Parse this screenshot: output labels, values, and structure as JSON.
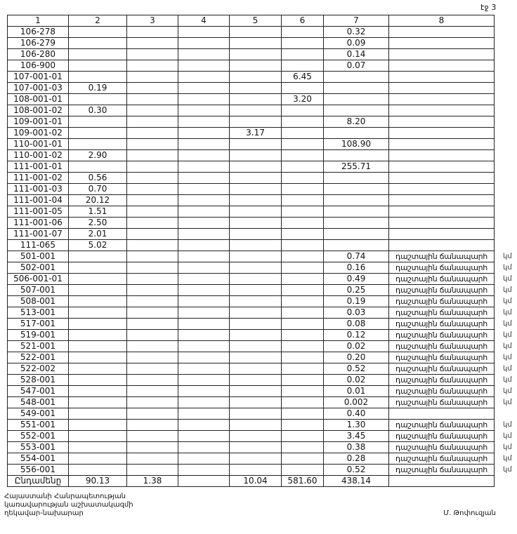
{
  "page_label": "էջ 3",
  "columns": [
    "1",
    "2",
    "3",
    "4",
    "5",
    "6",
    "7",
    "8"
  ],
  "rows": [
    {
      "c1": "106-278",
      "c7": "0.32"
    },
    {
      "c1": "106-279",
      "c7": "0.09"
    },
    {
      "c1": "106-280",
      "c7": "0.14"
    },
    {
      "c1": "106-900",
      "c7": "0.07"
    },
    {
      "c1": "107-001-01",
      "c6": "6.45"
    },
    {
      "c1": "107-001-03",
      "c2": "0.19"
    },
    {
      "c1": "108-001-01",
      "c6": "3.20"
    },
    {
      "c1": "108-001-02",
      "c2": "0.30"
    },
    {
      "c1": "109-001-01",
      "c7": "8.20"
    },
    {
      "c1": "109-001-02",
      "c5": "3.17"
    },
    {
      "c1": "110-001-01",
      "c7": "108.90"
    },
    {
      "c1": "110-001-02",
      "c2": "2.90"
    },
    {
      "c1": "111-001-01",
      "c7": "255.71"
    },
    {
      "c1": "111-001-02",
      "c2": "0.56"
    },
    {
      "c1": "111-001-03",
      "c2": "0.70"
    },
    {
      "c1": "111-001-04",
      "c2": "20.12"
    },
    {
      "c1": "111-001-05",
      "c2": "1.51"
    },
    {
      "c1": "111-001-06",
      "c2": "2.50"
    },
    {
      "c1": "111-001-07",
      "c2": "2.01"
    },
    {
      "c1": "111-065",
      "c2": "5.02"
    },
    {
      "c1": "501-001",
      "c7": "0.74",
      "c8": "դաշտային ճանապարհ",
      "unit": "կմ"
    },
    {
      "c1": "502-001",
      "c7": "0.16",
      "c8": "դաշտային ճանապարհ",
      "unit": "կմ"
    },
    {
      "c1": "506-001-01",
      "c7": "0.49",
      "c8": "դաշտային ճանապարհ",
      "unit": "կմ"
    },
    {
      "c1": "507-001",
      "c7": "0.25",
      "c8": "դաշտային ճանապարհ",
      "unit": "կմ"
    },
    {
      "c1": "508-001",
      "c7": "0.19",
      "c8": "դաշտային ճանապարհ",
      "unit": "կմ"
    },
    {
      "c1": "513-001",
      "c7": "0.03",
      "c8": "դաշտային ճանապարհ",
      "unit": "կմ"
    },
    {
      "c1": "517-001",
      "c7": "0.08",
      "c8": "դաշտային ճանապարհ",
      "unit": "կմ"
    },
    {
      "c1": "519-001",
      "c7": "0.12",
      "c8": "դաշտային ճանապարհ",
      "unit": "կմ"
    },
    {
      "c1": "521-001",
      "c7": "0.02",
      "c8": "դաշտային ճանապարհ",
      "unit": "կմ"
    },
    {
      "c1": "522-001",
      "c7": "0.20",
      "c8": "դաշտային ճանապարհ",
      "unit": "կմ"
    },
    {
      "c1": "522-002",
      "c7": "0.52",
      "c8": "դաշտային ճանապարհ",
      "unit": "կմ"
    },
    {
      "c1": "528-001",
      "c7": "0.02",
      "c8": "դաշտային ճանապարհ",
      "unit": "կմ"
    },
    {
      "c1": "547-001",
      "c7": "0.01",
      "c8": "դաշտային ճանապարհ",
      "unit": "կմ"
    },
    {
      "c1": "548-001",
      "c7": "0.002",
      "c8": "դաշտային ճանապարհ",
      "unit": "կմ"
    },
    {
      "c1": "549-001",
      "c7": "0.40"
    },
    {
      "c1": "551-001",
      "c7": "1.30",
      "c8": "դաշտային ճանապարհ",
      "unit": "կմ"
    },
    {
      "c1": "552-001",
      "c7": "3.45",
      "c8": "դաշտային ճանապարհ",
      "unit": "կմ"
    },
    {
      "c1": "553-001",
      "c7": "0.38",
      "c8": "դաշտային ճանապարհ",
      "unit": "կմ"
    },
    {
      "c1": "554-001",
      "c7": "0.28",
      "c8": "դաշտային ճանապարհ",
      "unit": "կմ"
    },
    {
      "c1": "556-001",
      "c7": "0.52",
      "c8": "դաշտային ճանապարհ",
      "unit": "կմ"
    },
    {
      "c1": "Ընդամենը",
      "c2": "90.13",
      "c3": "1.38",
      "c5": "10.04",
      "c6": "581.60",
      "c7": "438.14"
    }
  ],
  "footer": {
    "line1": "Հայաստանի Հանրապետության",
    "line2": "կառավարության աշխատակազմի",
    "line3": "ղեկավար-նախարար",
    "signatory": "Մ. Թոփուզյան"
  }
}
